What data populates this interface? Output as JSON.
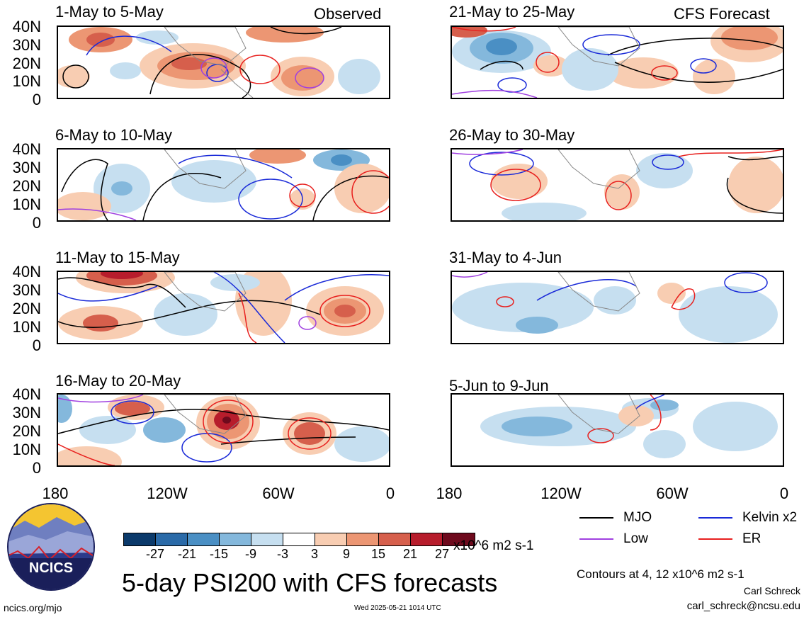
{
  "header": {
    "left_label": "Observed",
    "right_label": "CFS Forecast"
  },
  "panels": {
    "left": [
      {
        "title": "1-May to 5-May"
      },
      {
        "title": "6-May to 10-May"
      },
      {
        "title": "11-May to 15-May"
      },
      {
        "title": "16-May to 20-May"
      }
    ],
    "right": [
      {
        "title": "21-May to 25-May"
      },
      {
        "title": "26-May to 30-May"
      },
      {
        "title": "31-May to 4-Jun"
      },
      {
        "title": "5-Jun to 9-Jun"
      }
    ]
  },
  "axes": {
    "lat_ticks": [
      "40N",
      "30N",
      "20N",
      "10N",
      "0"
    ],
    "lon_ticks": [
      "180",
      "120W",
      "60W",
      "0"
    ]
  },
  "colorbar": {
    "tick_labels": [
      "-27",
      "-21",
      "-15",
      "-9",
      "-3",
      "3",
      "9",
      "15",
      "21",
      "27"
    ],
    "colors": [
      "#0b3a6b",
      "#2a6aa8",
      "#4a8fc4",
      "#84b8dc",
      "#c6dff0",
      "#ffffff",
      "#f8cdb2",
      "#ec9673",
      "#d65f4c",
      "#b71d2c",
      "#6e0a1d"
    ],
    "units": "x10^6 m2 s-1"
  },
  "legend": {
    "items": [
      {
        "label": "MJO",
        "color": "#000000"
      },
      {
        "label": "Kelvin x2",
        "color": "#1a2ad8"
      },
      {
        "label": "Low",
        "color": "#a040e0"
      },
      {
        "label": "ER",
        "color": "#e8201e"
      }
    ]
  },
  "title": "5-day PSI200 with CFS forecasts",
  "contours_note": "Contours at 4, 12 x10^6 m2 s-1",
  "author": "Carl Schreck",
  "email": "carl_schreck@ncsu.edu",
  "website": "ncics.org/mjo",
  "timestamp": "Wed 2025-05-21 1014 UTC",
  "logo_text": "NCICS"
}
